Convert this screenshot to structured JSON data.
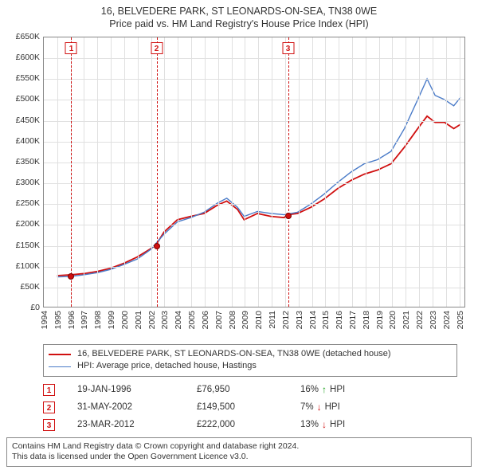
{
  "title_line1": "16, BELVEDERE PARK, ST LEONARDS-ON-SEA, TN38 0WE",
  "title_line2": "Price paid vs. HM Land Registry's House Price Index (HPI)",
  "chart": {
    "type": "line",
    "background_color": "#ffffff",
    "grid_color": "#e0e0e0",
    "border_color": "#888888",
    "xlim": [
      1994,
      2025.5
    ],
    "ylim": [
      0,
      650000
    ],
    "ytick_step": 50000,
    "y_ticks": [
      {
        "v": 0,
        "label": "£0"
      },
      {
        "v": 50000,
        "label": "£50K"
      },
      {
        "v": 100000,
        "label": "£100K"
      },
      {
        "v": 150000,
        "label": "£150K"
      },
      {
        "v": 200000,
        "label": "£200K"
      },
      {
        "v": 250000,
        "label": "£250K"
      },
      {
        "v": 300000,
        "label": "£300K"
      },
      {
        "v": 350000,
        "label": "£350K"
      },
      {
        "v": 400000,
        "label": "£400K"
      },
      {
        "v": 450000,
        "label": "£450K"
      },
      {
        "v": 500000,
        "label": "£500K"
      },
      {
        "v": 550000,
        "label": "£550K"
      },
      {
        "v": 600000,
        "label": "£600K"
      },
      {
        "v": 650000,
        "label": "£650K"
      }
    ],
    "x_ticks": [
      1994,
      1995,
      1996,
      1997,
      1998,
      1999,
      2000,
      2001,
      2002,
      2003,
      2004,
      2005,
      2006,
      2007,
      2008,
      2009,
      2010,
      2011,
      2012,
      2013,
      2014,
      2015,
      2016,
      2017,
      2018,
      2019,
      2020,
      2021,
      2022,
      2023,
      2024,
      2025
    ],
    "label_fontsize": 10.5,
    "series": [
      {
        "name": "price_paid",
        "color": "#d01010",
        "line_width": 1.8,
        "points": [
          [
            1995.0,
            75000
          ],
          [
            1996.05,
            76950
          ],
          [
            1997.0,
            80000
          ],
          [
            1998.0,
            85000
          ],
          [
            1999.0,
            93000
          ],
          [
            2000.0,
            105000
          ],
          [
            2001.0,
            120000
          ],
          [
            2002.0,
            140000
          ],
          [
            2002.41,
            149500
          ],
          [
            2003.0,
            180000
          ],
          [
            2004.0,
            210000
          ],
          [
            2005.0,
            218000
          ],
          [
            2006.0,
            225000
          ],
          [
            2007.0,
            245000
          ],
          [
            2007.7,
            255000
          ],
          [
            2008.5,
            235000
          ],
          [
            2009.0,
            210000
          ],
          [
            2010.0,
            225000
          ],
          [
            2011.0,
            218000
          ],
          [
            2012.0,
            215000
          ],
          [
            2012.22,
            222000
          ],
          [
            2013.0,
            225000
          ],
          [
            2014.0,
            240000
          ],
          [
            2015.0,
            260000
          ],
          [
            2016.0,
            285000
          ],
          [
            2017.0,
            305000
          ],
          [
            2018.0,
            320000
          ],
          [
            2019.0,
            330000
          ],
          [
            2020.0,
            345000
          ],
          [
            2021.0,
            385000
          ],
          [
            2022.0,
            430000
          ],
          [
            2022.7,
            460000
          ],
          [
            2023.3,
            445000
          ],
          [
            2024.0,
            445000
          ],
          [
            2024.7,
            430000
          ],
          [
            2025.2,
            440000
          ]
        ]
      },
      {
        "name": "hpi",
        "color": "#4a7bc8",
        "line_width": 1.4,
        "points": [
          [
            1995.0,
            72000
          ],
          [
            1996.0,
            73000
          ],
          [
            1997.0,
            77000
          ],
          [
            1998.0,
            82000
          ],
          [
            1999.0,
            90000
          ],
          [
            2000.0,
            102000
          ],
          [
            2001.0,
            115000
          ],
          [
            2002.0,
            138000
          ],
          [
            2003.0,
            175000
          ],
          [
            2004.0,
            205000
          ],
          [
            2005.0,
            215000
          ],
          [
            2006.0,
            228000
          ],
          [
            2007.0,
            250000
          ],
          [
            2007.7,
            262000
          ],
          [
            2008.5,
            240000
          ],
          [
            2009.0,
            218000
          ],
          [
            2010.0,
            230000
          ],
          [
            2011.0,
            225000
          ],
          [
            2012.0,
            222000
          ],
          [
            2013.0,
            228000
          ],
          [
            2014.0,
            248000
          ],
          [
            2015.0,
            272000
          ],
          [
            2016.0,
            300000
          ],
          [
            2017.0,
            325000
          ],
          [
            2018.0,
            345000
          ],
          [
            2019.0,
            355000
          ],
          [
            2020.0,
            375000
          ],
          [
            2021.0,
            430000
          ],
          [
            2022.0,
            500000
          ],
          [
            2022.7,
            550000
          ],
          [
            2023.3,
            510000
          ],
          [
            2024.0,
            500000
          ],
          [
            2024.7,
            485000
          ],
          [
            2025.2,
            505000
          ]
        ]
      }
    ],
    "event_lines": [
      {
        "num": "1",
        "x": 1996.05,
        "dot_y": 76950
      },
      {
        "num": "2",
        "x": 2002.41,
        "dot_y": 149500
      },
      {
        "num": "3",
        "x": 2012.22,
        "dot_y": 222000
      }
    ],
    "event_line_color": "#d01010",
    "dot_fill": "#d01010",
    "dot_border": "#7a0000"
  },
  "legend": {
    "items": [
      {
        "color": "#d01010",
        "width": 2,
        "label": "16, BELVEDERE PARK, ST LEONARDS-ON-SEA, TN38 0WE (detached house)"
      },
      {
        "color": "#4a7bc8",
        "width": 1.4,
        "label": "HPI: Average price, detached house, Hastings"
      }
    ]
  },
  "events_table": [
    {
      "num": "1",
      "date": "19-JAN-1996",
      "price": "£76,950",
      "delta_pct": "16%",
      "direction": "up",
      "delta_label": "HPI"
    },
    {
      "num": "2",
      "date": "31-MAY-2002",
      "price": "£149,500",
      "delta_pct": "7%",
      "direction": "down",
      "delta_label": "HPI"
    },
    {
      "num": "3",
      "date": "23-MAR-2012",
      "price": "£222,000",
      "delta_pct": "13%",
      "direction": "down",
      "delta_label": "HPI"
    }
  ],
  "footer_line1": "Contains HM Land Registry data © Crown copyright and database right 2024.",
  "footer_line2": "This data is licensed under the Open Government Licence v3.0.",
  "arrow_up": "↑",
  "arrow_down": "↓",
  "arrow_up_color": "#1aa01a",
  "arrow_down_color": "#d01010"
}
